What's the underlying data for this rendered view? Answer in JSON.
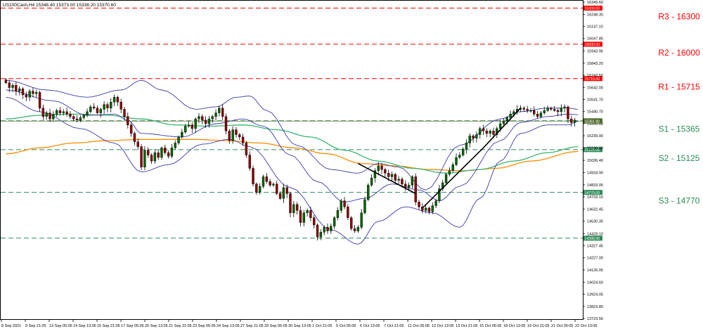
{
  "header": {
    "instrument_info": "US100Cash,H4  15348.40 15373.00 15338.20 15370.60"
  },
  "colors": {
    "bull": "#006400",
    "bear": "#8b0000",
    "bollinger": "#3b3bab",
    "ma_green": "#3cb371",
    "ma_orange": "#ff8c00",
    "resistance": "#ff0000",
    "support": "#2e8b57",
    "trendline": "#000000",
    "price_line": "#556b2f"
  },
  "chart_data": {
    "type": "candlestick",
    "title": "US100Cash,H4  15348.40 15373.00 15338.20 15370.60",
    "ylim": [
      13723.56,
      16349.6
    ],
    "y_ticks": [
      "16349.60",
      "16248.35",
      "16147.10",
      "16047.85",
      "15943.95",
      "15843.20",
      "15742.50",
      "15642.00",
      "15541.70",
      "15440.70",
      "15340.60",
      "15239.90",
      "15138.80",
      "15036.40",
      "14934.90",
      "14833.05",
      "14733.10",
      "14632.45",
      "14530.35",
      "14428.10",
      "14327.45",
      "14227.00",
      "14126.05",
      "14024.60",
      "13924.05",
      "13823.80",
      "13723.56"
    ],
    "x_tick_labels": [
      "8 Sep 2021",
      "9 Sep 21:05",
      "13 Sep 05:05",
      "14 Sep 13:05",
      "15 Sep 21:05",
      "17 Sep 05:05",
      "20 Sep 13:05",
      "21 Sep 21:05",
      "23 Sep 05:05",
      "24 Sep 13:05",
      "27 Sep 21:05",
      "29 Sep 05:05",
      "30 Sep 13:05",
      "1 Oct 21:05",
      "5 Oct 05:05",
      "6 Oct 13:05",
      "7 Oct 21:05",
      "11 Oct 05:05",
      "12 Oct 13:05",
      "13 Oct 21:05",
      "15 Oct 05:05",
      "18 Oct 13:05",
      "19 Oct 21:05",
      "21 Oct 05:05",
      "22 Oct 13:05"
    ],
    "price_levels": [
      {
        "label": "R3 - 16300",
        "value": 16300,
        "tag": "16300.00",
        "kind": "resistance"
      },
      {
        "label": "R2 - 16000",
        "value": 16000,
        "tag": "16000.00",
        "kind": "resistance"
      },
      {
        "label": "R1 - 15715",
        "value": 15715,
        "tag": "15715.00",
        "kind": "resistance"
      },
      {
        "label": "S1 - 15365",
        "value": 15365,
        "tag": "15365.00",
        "kind": "support"
      },
      {
        "label": "S2 - 15125",
        "value": 15125,
        "tag": "15125.00",
        "kind": "support"
      },
      {
        "label": "S3 - 14770",
        "value": 14770,
        "tag": "14770.00",
        "kind": "support"
      },
      {
        "label": "",
        "value": 14390,
        "tag": "14390.00",
        "kind": "support"
      }
    ],
    "current_price": 15361.8,
    "current_price_tag": "15361.80",
    "closes": [
      15680,
      15640,
      15660,
      15610,
      15630,
      15580,
      15560,
      15610,
      15590,
      15600,
      15470,
      15400,
      15430,
      15380,
      15420,
      15450,
      15430,
      15440,
      15420,
      15400,
      15380,
      15370,
      15390,
      15410,
      15440,
      15480,
      15470,
      15430,
      15460,
      15500,
      15470,
      15520,
      15560,
      15520,
      15460,
      15400,
      15330,
      15260,
      15190,
      15150,
      14980,
      15120,
      15080,
      15030,
      15100,
      15060,
      15140,
      15100,
      15070,
      15140,
      15180,
      15230,
      15270,
      15320,
      15330,
      15300,
      15380,
      15400,
      15370,
      15340,
      15380,
      15400,
      15430,
      15470,
      15400,
      15280,
      15200,
      15290,
      15250,
      15230,
      15180,
      15080,
      14970,
      14840,
      14770,
      14820,
      14900,
      14860,
      14830,
      14840,
      14760,
      14720,
      14810,
      14760,
      14600,
      14670,
      14620,
      14520,
      14600,
      14620,
      14560,
      14500,
      14400,
      14440,
      14480,
      14450,
      14490,
      14560,
      14620,
      14700,
      14650,
      14560,
      14470,
      14450,
      14480,
      14600,
      14710,
      14830,
      14890,
      14950,
      14990,
      14960,
      14930,
      14900,
      14920,
      14870,
      14880,
      14840,
      14810,
      14830,
      14900,
      14690,
      14650,
      14620,
      14640,
      14610,
      14660,
      14700,
      14800,
      14850,
      14920,
      14950,
      15000,
      15060,
      15080,
      15130,
      15180,
      15240,
      15220,
      15250,
      15300,
      15280,
      15260,
      15280,
      15250,
      15300,
      15340,
      15360,
      15390,
      15420,
      15440,
      15460,
      15470,
      15460,
      15450,
      15450,
      15420,
      15400,
      15430,
      15450,
      15470,
      15460,
      15450,
      15440,
      15470,
      15480,
      15380,
      15350,
      15370
    ],
    "bollinger": {
      "upper": [
        [
          0,
          15700
        ],
        [
          12,
          15620
        ],
        [
          24,
          15560
        ],
        [
          34,
          15620
        ],
        [
          40,
          15700
        ],
        [
          46,
          15620
        ],
        [
          56,
          15460
        ],
        [
          62,
          15480
        ],
        [
          68,
          15560
        ],
        [
          72,
          15570
        ],
        [
          77,
          15450
        ],
        [
          86,
          15160
        ],
        [
          96,
          14960
        ],
        [
          104,
          14930
        ],
        [
          110,
          15010
        ],
        [
          116,
          14980
        ],
        [
          124,
          14790
        ],
        [
          134,
          15160
        ],
        [
          146,
          15380
        ],
        [
          152,
          15440
        ],
        [
          160,
          15470
        ],
        [
          166,
          15470
        ],
        [
          169,
          15460
        ]
      ],
      "middle": [
        [
          0,
          15620
        ],
        [
          14,
          15530
        ],
        [
          24,
          15410
        ],
        [
          32,
          15420
        ],
        [
          36,
          15370
        ],
        [
          40,
          15260
        ],
        [
          52,
          15230
        ],
        [
          62,
          15340
        ],
        [
          70,
          15380
        ],
        [
          76,
          15320
        ],
        [
          84,
          15080
        ],
        [
          92,
          14860
        ],
        [
          100,
          14690
        ],
        [
          106,
          14720
        ],
        [
          114,
          14840
        ],
        [
          122,
          14790
        ],
        [
          128,
          14700
        ],
        [
          134,
          14820
        ],
        [
          146,
          15200
        ],
        [
          152,
          15350
        ],
        [
          160,
          15400
        ],
        [
          166,
          15420
        ],
        [
          169,
          15415
        ]
      ],
      "lower": [
        [
          0,
          15560
        ],
        [
          10,
          15440
        ],
        [
          22,
          15300
        ],
        [
          32,
          15180
        ],
        [
          40,
          14940
        ],
        [
          48,
          15000
        ],
        [
          58,
          15170
        ],
        [
          66,
          15210
        ],
        [
          72,
          15150
        ],
        [
          84,
          14810
        ],
        [
          96,
          14460
        ],
        [
          104,
          14340
        ],
        [
          110,
          14530
        ],
        [
          118,
          14650
        ],
        [
          126,
          14600
        ],
        [
          134,
          14480
        ],
        [
          140,
          14720
        ],
        [
          146,
          15030
        ],
        [
          152,
          15260
        ],
        [
          160,
          15330
        ],
        [
          166,
          15330
        ],
        [
          169,
          15360
        ]
      ]
    },
    "ma_green": [
      [
        0,
        15380
      ],
      [
        10,
        15410
      ],
      [
        20,
        15420
      ],
      [
        30,
        15410
      ],
      [
        40,
        15380
      ],
      [
        50,
        15330
      ],
      [
        60,
        15320
      ],
      [
        70,
        15330
      ],
      [
        80,
        15290
      ],
      [
        90,
        15230
      ],
      [
        100,
        15120
      ],
      [
        110,
        15030
      ],
      [
        120,
        14970
      ],
      [
        130,
        14930
      ],
      [
        140,
        14960
      ],
      [
        150,
        15030
      ],
      [
        160,
        15100
      ],
      [
        169,
        15150
      ]
    ],
    "ma_orange": [
      [
        0,
        15090
      ],
      [
        10,
        15140
      ],
      [
        20,
        15180
      ],
      [
        30,
        15200
      ],
      [
        40,
        15210
      ],
      [
        55,
        15210
      ],
      [
        65,
        15200
      ],
      [
        75,
        15180
      ],
      [
        85,
        15140
      ],
      [
        95,
        15090
      ],
      [
        105,
        15010
      ],
      [
        115,
        14990
      ],
      [
        125,
        14960
      ],
      [
        135,
        14950
      ],
      [
        145,
        14970
      ],
      [
        155,
        15030
      ],
      [
        169,
        15110
      ]
    ],
    "trendlines": [
      [
        [
          104,
          15010
        ],
        [
          121,
          14760
        ]
      ],
      [
        [
          123,
          14640
        ],
        [
          141,
          15140
        ]
      ],
      [
        [
          141,
          15140
        ],
        [
          152,
          15470
        ]
      ]
    ]
  }
}
